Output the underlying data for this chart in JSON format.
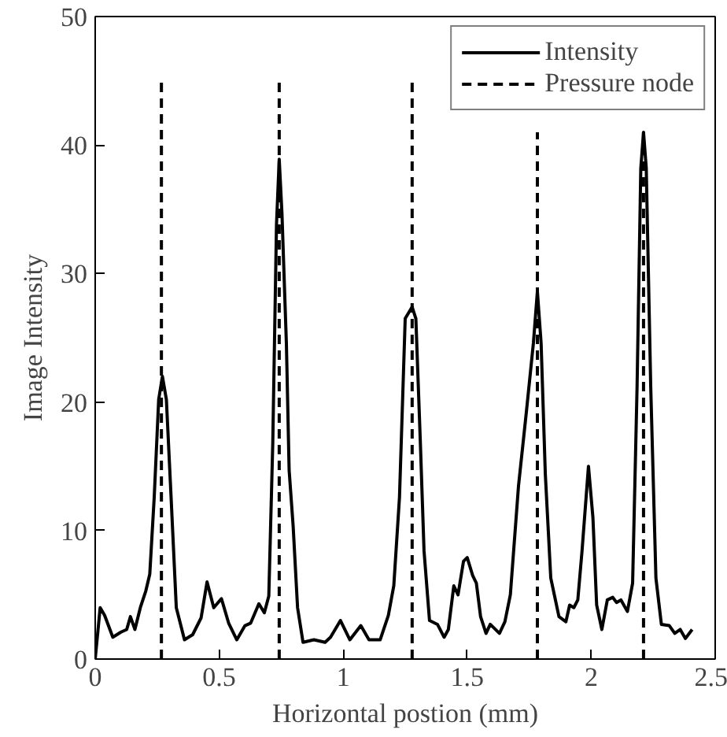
{
  "chart_data": {
    "type": "line",
    "xlabel": "Horizontal postion (mm)",
    "ylabel": "Image Intensity",
    "xlim": [
      0,
      2.5
    ],
    "ylim": [
      0,
      50
    ],
    "xticks": [
      0,
      0.5,
      1,
      1.5,
      2,
      2.5
    ],
    "yticks": [
      0,
      10,
      20,
      30,
      40,
      50
    ],
    "grid": false,
    "legend": "top right",
    "marker": "none",
    "series": [
      {
        "name": "Intensity",
        "color": "#000000",
        "line_style": "solid",
        "x": [
          0,
          0.02,
          0.038,
          0.071,
          0.104,
          0.127,
          0.142,
          0.16,
          0.182,
          0.204,
          0.22,
          0.238,
          0.256,
          0.271,
          0.287,
          0.304,
          0.327,
          0.36,
          0.393,
          0.427,
          0.451,
          0.478,
          0.509,
          0.538,
          0.571,
          0.604,
          0.627,
          0.66,
          0.682,
          0.7,
          0.716,
          0.731,
          0.742,
          0.753,
          0.771,
          0.782,
          0.798,
          0.816,
          0.838,
          0.882,
          0.927,
          0.949,
          0.989,
          1.027,
          1.071,
          1.104,
          1.149,
          1.182,
          1.204,
          1.227,
          1.25,
          1.278,
          1.293,
          1.311,
          1.326,
          1.348,
          1.38,
          1.407,
          1.424,
          1.446,
          1.463,
          1.485,
          1.5,
          1.522,
          1.537,
          1.554,
          1.576,
          1.593,
          1.63,
          1.652,
          1.674,
          1.707,
          1.739,
          1.767,
          1.783,
          1.798,
          1.815,
          1.837,
          1.87,
          1.898,
          1.913,
          1.93,
          1.946,
          1.963,
          1.989,
          2.007,
          2.022,
          2.043,
          2.065,
          2.087,
          2.102,
          2.12,
          2.146,
          2.167,
          2.185,
          2.2,
          2.211,
          2.222,
          2.24,
          2.261,
          2.283,
          2.315,
          2.337,
          2.359,
          2.38,
          2.407
        ],
        "values": [
          0,
          4,
          3.4,
          1.7,
          2.1,
          2.3,
          3.3,
          2.3,
          4,
          5.3,
          6.6,
          12.6,
          20.2,
          22,
          20.2,
          13.4,
          4,
          1.5,
          1.9,
          3.2,
          6,
          4,
          4.7,
          2.8,
          1.5,
          2.6,
          2.8,
          4.3,
          3.6,
          4.9,
          16.8,
          33.8,
          38.9,
          34.7,
          24.5,
          14.7,
          10.4,
          4,
          1.3,
          1.5,
          1.3,
          1.7,
          3,
          1.5,
          2.6,
          1.5,
          1.5,
          3.4,
          5.7,
          12.6,
          26.5,
          27.4,
          26.5,
          16.9,
          8.4,
          3,
          2.7,
          1.7,
          2.3,
          5.7,
          5,
          7.6,
          7.9,
          6.5,
          5.9,
          3.3,
          2,
          2.7,
          2,
          2.9,
          5,
          13.5,
          19.3,
          24.6,
          28.6,
          24.6,
          14.4,
          6.3,
          3.3,
          2.9,
          4.2,
          4,
          4.6,
          8.4,
          15,
          11,
          4.2,
          2.3,
          4.6,
          4.8,
          4.4,
          4.6,
          3.7,
          5.9,
          21.2,
          38.2,
          41,
          38.2,
          21.2,
          6.3,
          2.7,
          2.6,
          2,
          2.3,
          1.6,
          2.3
        ]
      },
      {
        "name": "Pressure node",
        "color": "#000000",
        "line_style": "dashed",
        "x": [
          0.267,
          0.267,
          null,
          0.742,
          0.742,
          null,
          1.278,
          1.278,
          null,
          1.783,
          1.783,
          null,
          2.211,
          2.211
        ],
        "values": [
          0,
          45,
          null,
          0,
          45,
          null,
          0,
          45,
          null,
          0,
          41,
          null,
          0,
          41
        ]
      }
    ]
  }
}
